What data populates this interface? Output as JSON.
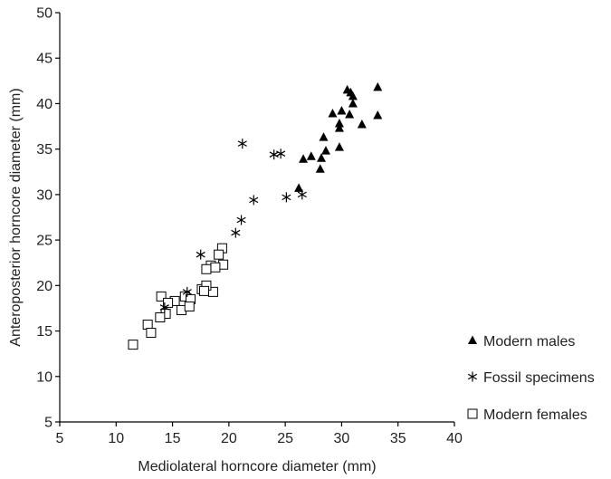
{
  "chart_data": {
    "type": "scatter",
    "xlabel": "Mediolateral horncore diameter (mm)",
    "ylabel": "Anteroposterior horncore diameter (mm)",
    "xlim": [
      5,
      40
    ],
    "ylim": [
      5,
      50
    ],
    "xticks": [
      "5",
      "10",
      "15",
      "20",
      "25",
      "30",
      "35",
      "40"
    ],
    "yticks": [
      "5",
      "10",
      "15",
      "20",
      "25",
      "30",
      "35",
      "40",
      "45",
      "50"
    ],
    "grid": false,
    "legend_position": "right",
    "series": [
      {
        "name": "Modern males",
        "marker": "triangle",
        "points": [
          [
            30.5,
            41.5
          ],
          [
            30.8,
            41.2
          ],
          [
            31.0,
            40.8
          ],
          [
            33.2,
            41.8
          ],
          [
            31.0,
            40.0
          ],
          [
            30.7,
            38.8
          ],
          [
            30.0,
            39.2
          ],
          [
            29.2,
            38.9
          ],
          [
            29.8,
            37.8
          ],
          [
            29.8,
            37.3
          ],
          [
            33.2,
            38.7
          ],
          [
            31.8,
            37.7
          ],
          [
            29.8,
            35.2
          ],
          [
            28.4,
            36.3
          ],
          [
            27.3,
            34.2
          ],
          [
            26.6,
            33.9
          ],
          [
            28.6,
            34.8
          ],
          [
            28.2,
            34.0
          ],
          [
            28.1,
            32.8
          ],
          [
            26.2,
            30.7
          ]
        ]
      },
      {
        "name": "Fossil specimens",
        "marker": "asterisk",
        "points": [
          [
            21.2,
            35.6
          ],
          [
            24.0,
            34.4
          ],
          [
            24.6,
            34.5
          ],
          [
            22.2,
            29.4
          ],
          [
            25.1,
            29.7
          ],
          [
            26.5,
            30.0
          ],
          [
            21.1,
            27.2
          ],
          [
            20.6,
            25.8
          ],
          [
            17.5,
            23.4
          ],
          [
            16.3,
            19.3
          ],
          [
            14.3,
            17.6
          ]
        ]
      },
      {
        "name": "Modern females",
        "marker": "square",
        "points": [
          [
            19.4,
            24.1
          ],
          [
            19.1,
            23.4
          ],
          [
            18.4,
            22.2
          ],
          [
            19.5,
            22.3
          ],
          [
            18.8,
            22.0
          ],
          [
            18.0,
            21.8
          ],
          [
            17.6,
            19.6
          ],
          [
            18.6,
            19.3
          ],
          [
            18.0,
            20.0
          ],
          [
            17.8,
            19.4
          ],
          [
            16.1,
            18.8
          ],
          [
            14.0,
            18.8
          ],
          [
            15.2,
            18.3
          ],
          [
            14.6,
            18.1
          ],
          [
            16.6,
            18.5
          ],
          [
            15.8,
            17.3
          ],
          [
            16.5,
            17.7
          ],
          [
            14.4,
            16.9
          ],
          [
            13.9,
            16.5
          ],
          [
            12.8,
            15.7
          ],
          [
            13.1,
            14.8
          ],
          [
            11.5,
            13.5
          ]
        ]
      }
    ]
  }
}
